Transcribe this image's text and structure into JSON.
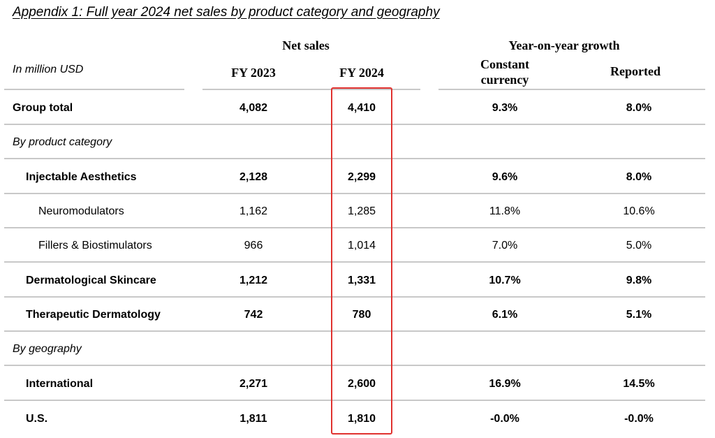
{
  "title": "Appendix 1: Full year 2024 net sales by product category and geography",
  "header": {
    "net_sales": "Net sales",
    "yoy_growth": "Year-on-year growth",
    "unit": "In million USD",
    "fy2023": "FY 2023",
    "fy2024": "FY 2024",
    "constant_currency_line1": "Constant",
    "constant_currency_line2": "currency",
    "reported": "Reported"
  },
  "rows": [
    {
      "label": "Group total",
      "fy2023": "4,082",
      "fy2024": "4,410",
      "cc": "9.3%",
      "reported": "8.0%"
    },
    {
      "label": "By product category"
    },
    {
      "label": "Injectable Aesthetics",
      "fy2023": "2,128",
      "fy2024": "2,299",
      "cc": "9.6%",
      "reported": "8.0%"
    },
    {
      "label": "Neuromodulators",
      "fy2023": "1,162",
      "fy2024": "1,285",
      "cc": "11.8%",
      "reported": "10.6%"
    },
    {
      "label": "Fillers & Biostimulators",
      "fy2023": "966",
      "fy2024": "1,014",
      "cc": "7.0%",
      "reported": "5.0%"
    },
    {
      "label": "Dermatological Skincare",
      "fy2023": "1,212",
      "fy2024": "1,331",
      "cc": "10.7%",
      "reported": "9.8%"
    },
    {
      "label": "Therapeutic Dermatology",
      "fy2023": "742",
      "fy2024": "780",
      "cc": "6.1%",
      "reported": "5.1%"
    },
    {
      "label": "By geography"
    },
    {
      "label": "International",
      "fy2023": "2,271",
      "fy2024": "2,600",
      "cc": "16.9%",
      "reported": "14.5%"
    },
    {
      "label": "U.S.",
      "fy2023": "1,811",
      "fy2024": "1,810",
      "cc": "-0.0%",
      "reported": "-0.0%"
    }
  ],
  "colors": {
    "highlight": "#e0322f",
    "rule": "#c8c8c8"
  }
}
